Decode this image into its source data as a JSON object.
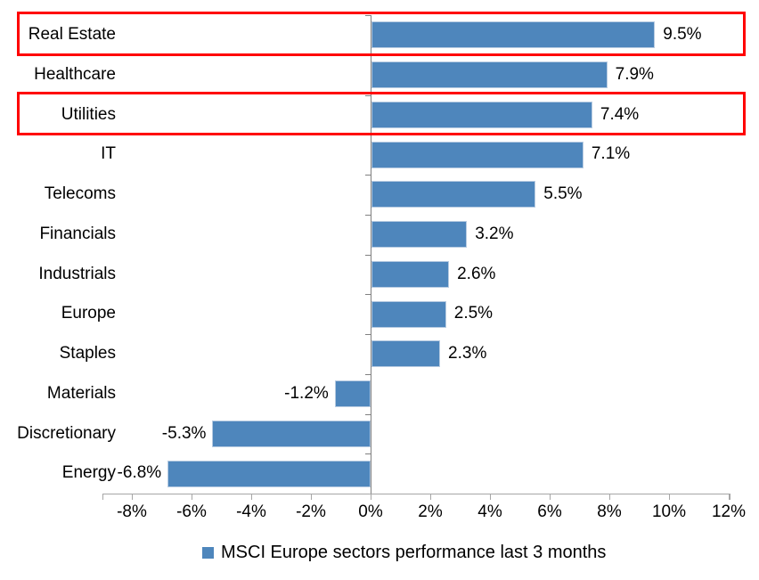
{
  "chart_data": {
    "type": "bar",
    "orientation": "horizontal",
    "title": "",
    "xlabel": "",
    "ylabel": "",
    "categories": [
      "Real Estate",
      "Healthcare",
      "Utilities",
      "IT",
      "Telecoms",
      "Financials",
      "Industrials",
      "Europe",
      "Staples",
      "Materials",
      "Discretionary",
      "Energy"
    ],
    "values": [
      9.5,
      7.9,
      7.4,
      7.1,
      5.5,
      3.2,
      2.6,
      2.5,
      2.3,
      -1.2,
      -5.3,
      -6.8
    ],
    "data_labels": [
      "9.5%",
      "7.9%",
      "7.4%",
      "7.1%",
      "5.5%",
      "3.2%",
      "2.6%",
      "2.5%",
      "2.3%",
      "-1.2%",
      "-5.3%",
      "-6.8%"
    ],
    "x_axis": {
      "tick_values": [
        -8,
        -6,
        -4,
        -2,
        0,
        2,
        4,
        6,
        8,
        10,
        12
      ],
      "tick_labels": [
        "-8%",
        "-6%",
        "-4%",
        "-2%",
        "0%",
        "2%",
        "4%",
        "6%",
        "8%",
        "10%",
        "12%"
      ],
      "min": -8,
      "max": 12,
      "unit": "%"
    },
    "grid": false,
    "legend": {
      "label": "MSCI Europe sectors performance last 3 months",
      "position": "bottom"
    },
    "colors": {
      "bar_fill": "#4E86BC",
      "bar_border": "#B7CBE1",
      "axis": "#A6A6A6",
      "zero_axis": "#808080",
      "highlight_border": "#FF0000",
      "text": "#000000"
    },
    "highlighted_categories": [
      "Real Estate",
      "Utilities"
    ]
  }
}
